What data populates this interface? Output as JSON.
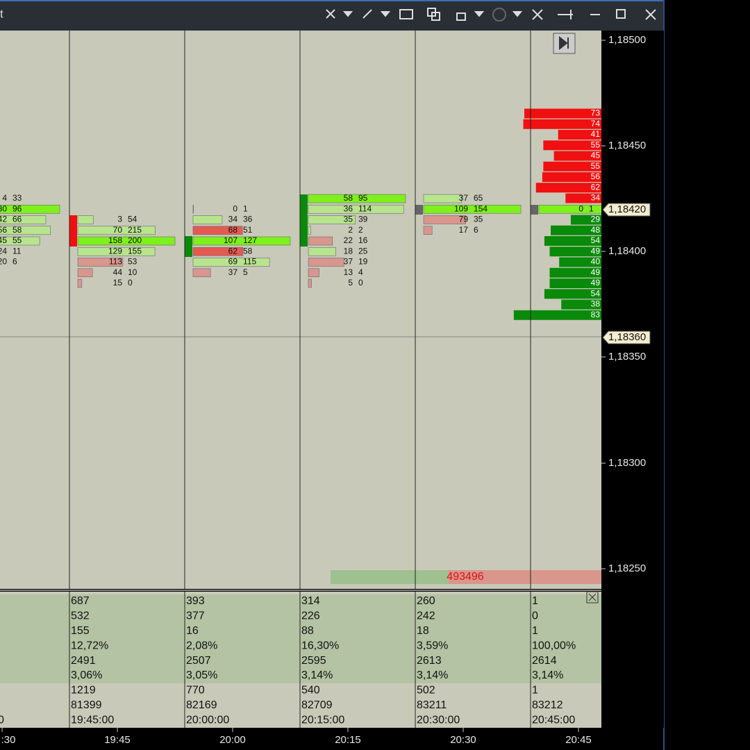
{
  "toolbar": {
    "title": "t"
  },
  "price_axis": {
    "labels": [
      "1,18500",
      "1,18450",
      "1,18400",
      "1,18350",
      "1,18300",
      "1,18250"
    ],
    "markers": [
      "1,18420",
      "1,18360"
    ]
  },
  "footprint": {
    "columns": [
      {
        "rows": [
          {
            "bid": 4,
            "ask": 33
          },
          {
            "bid": 30,
            "ask": 96
          },
          {
            "bid": 42,
            "ask": 66
          },
          {
            "bid": 56,
            "ask": 58
          },
          {
            "bid": 45,
            "ask": 55
          },
          {
            "bid": 24,
            "ask": 11
          },
          {
            "bid": 20,
            "ask": 6
          }
        ]
      },
      {
        "rows": [
          {
            "bid": 3,
            "ask": 54
          },
          {
            "bid": 70,
            "ask": 215
          },
          {
            "bid": 158,
            "ask": 200
          },
          {
            "bid": 129,
            "ask": 155
          },
          {
            "bid": 113,
            "ask": 53
          },
          {
            "bid": 44,
            "ask": 10
          },
          {
            "bid": 15,
            "ask": 0
          }
        ]
      },
      {
        "rows": [
          {
            "bid": 0,
            "ask": 1
          },
          {
            "bid": 34,
            "ask": 36
          },
          {
            "bid": 68,
            "ask": 51
          },
          {
            "bid": 107,
            "ask": 127
          },
          {
            "bid": 62,
            "ask": 58
          },
          {
            "bid": 69,
            "ask": 115
          },
          {
            "bid": 37,
            "ask": 5
          }
        ]
      },
      {
        "rows": [
          {
            "bid": 58,
            "ask": 95
          },
          {
            "bid": 36,
            "ask": 114
          },
          {
            "bid": 35,
            "ask": 39
          },
          {
            "bid": 2,
            "ask": 2
          },
          {
            "bid": 22,
            "ask": 16
          },
          {
            "bid": 18,
            "ask": 25
          },
          {
            "bid": 37,
            "ask": 19
          },
          {
            "bid": 13,
            "ask": 4
          },
          {
            "bid": 5,
            "ask": 0
          }
        ]
      },
      {
        "rows": [
          {
            "bid": 37,
            "ask": 65
          },
          {
            "bid": 109,
            "ask": 154
          },
          {
            "bid": 79,
            "ask": 35
          },
          {
            "bid": 17,
            "ask": 6
          }
        ]
      },
      {
        "rows": [
          {
            "bid": 0,
            "ask": 1
          }
        ]
      }
    ]
  },
  "ladder": {
    "asks": [
      73,
      74,
      41,
      55,
      45,
      55,
      56,
      62,
      34
    ],
    "bids": [
      29,
      48,
      54,
      49,
      40,
      49,
      49,
      54,
      38,
      83
    ]
  },
  "volume_total": "493496",
  "stats": {
    "cut_value": "0",
    "columns": [
      [
        "687",
        "532",
        "155",
        "12,72%",
        "2491",
        "3,06%",
        "1219",
        "81399",
        "19:45:00"
      ],
      [
        "393",
        "377",
        "16",
        "2,08%",
        "2507",
        "3,05%",
        "770",
        "82169",
        "20:00:00"
      ],
      [
        "314",
        "226",
        "88",
        "16,30%",
        "2595",
        "3,14%",
        "540",
        "82709",
        "20:15:00"
      ],
      [
        "260",
        "242",
        "18",
        "3,59%",
        "2613",
        "3,14%",
        "502",
        "83211",
        "20:30:00"
      ],
      [
        "1",
        "0",
        "1",
        "100,00%",
        "2614",
        "3,14%",
        "1",
        "83212",
        "20:45:00"
      ]
    ]
  },
  "time_axis": [
    ":30",
    "19:45",
    "20:00",
    "20:15",
    "20:30",
    "20:45"
  ]
}
